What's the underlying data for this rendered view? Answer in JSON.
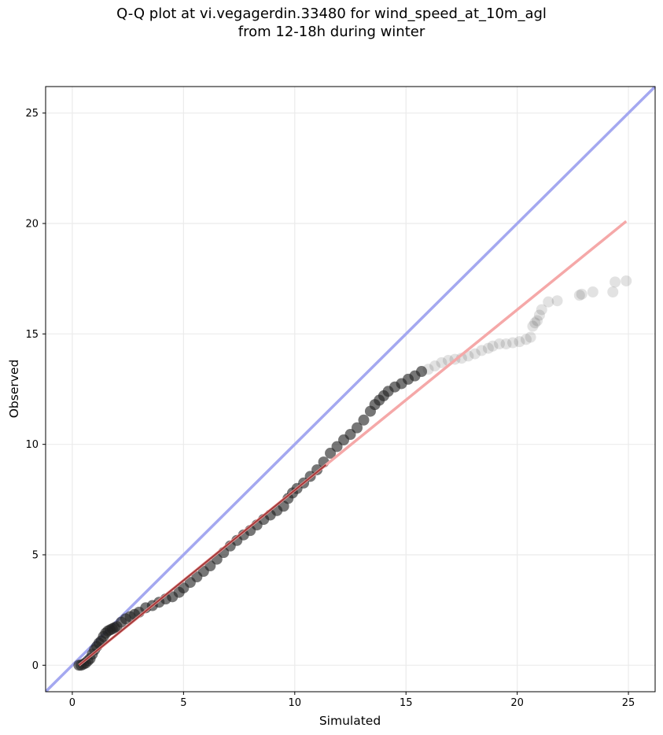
{
  "chart_data": {
    "type": "scatter",
    "title_lines": [
      "Q-Q plot at vi.vegagerdin.33480 for wind_speed_at_10m_agl",
      "from 12-18h during winter"
    ],
    "xlabel": "Simulated",
    "ylabel": "Observed",
    "xlim": [
      -1.2,
      26.2
    ],
    "ylim": [
      -1.2,
      26.2
    ],
    "xticks": [
      0,
      5,
      10,
      15,
      20,
      25
    ],
    "yticks": [
      0,
      5,
      10,
      15,
      20,
      25
    ],
    "grid": true,
    "colors": {
      "points": "#222222",
      "identity_line": "#a4a8f0",
      "fit_line": "#f5a8a8",
      "fit_line_dense": "#8b1a1a",
      "grid": "#ebebeb"
    },
    "identity_line": {
      "x": [
        -1.2,
        26.2
      ],
      "y": [
        -1.2,
        26.2
      ]
    },
    "fit_line": {
      "x": [
        0.3,
        24.9
      ],
      "y": [
        0.0,
        20.1
      ]
    },
    "points": {
      "x": [
        0.3,
        0.4,
        0.5,
        0.6,
        0.7,
        0.8,
        0.9,
        1.0,
        1.1,
        1.2,
        1.3,
        1.4,
        1.5,
        1.6,
        1.7,
        1.8,
        1.9,
        2.0,
        2.2,
        2.4,
        2.6,
        2.8,
        3.0,
        3.3,
        3.6,
        3.9,
        4.2,
        4.5,
        4.8,
        5.0,
        5.3,
        5.6,
        5.9,
        6.2,
        6.5,
        6.8,
        7.1,
        7.4,
        7.7,
        8.0,
        8.3,
        8.6,
        8.9,
        9.2,
        9.5,
        9.7,
        9.9,
        10.1,
        10.4,
        10.7,
        11.0,
        11.3,
        11.6,
        11.9,
        12.2,
        12.5,
        12.8,
        13.1,
        13.4,
        13.6,
        13.8,
        14.0,
        14.2,
        14.5,
        14.8,
        15.1,
        15.4,
        15.7,
        16.0,
        16.3,
        16.6,
        16.9,
        17.2,
        17.5,
        17.8,
        18.1,
        18.4,
        18.7,
        18.9,
        19.2,
        19.5,
        19.8,
        20.1,
        20.4,
        20.6,
        20.7,
        20.8,
        20.9,
        21.0,
        21.1,
        21.4,
        21.8,
        22.8,
        22.9,
        23.4,
        24.3,
        24.4,
        24.9
      ],
      "y": [
        0.0,
        0.0,
        0.05,
        0.1,
        0.2,
        0.3,
        0.5,
        0.7,
        0.85,
        1.0,
        1.1,
        1.3,
        1.45,
        1.55,
        1.6,
        1.65,
        1.7,
        1.75,
        1.95,
        2.1,
        2.2,
        2.3,
        2.4,
        2.6,
        2.7,
        2.85,
        3.0,
        3.1,
        3.3,
        3.5,
        3.75,
        4.0,
        4.25,
        4.5,
        4.8,
        5.1,
        5.4,
        5.65,
        5.9,
        6.1,
        6.35,
        6.6,
        6.8,
        7.0,
        7.2,
        7.55,
        7.8,
        8.0,
        8.25,
        8.55,
        8.85,
        9.2,
        9.6,
        9.9,
        10.2,
        10.45,
        10.75,
        11.1,
        11.5,
        11.8,
        12.0,
        12.2,
        12.4,
        12.6,
        12.75,
        12.95,
        13.1,
        13.3,
        13.4,
        13.55,
        13.7,
        13.8,
        13.85,
        13.9,
        14.0,
        14.1,
        14.25,
        14.35,
        14.45,
        14.55,
        14.55,
        14.6,
        14.65,
        14.75,
        14.85,
        15.35,
        15.5,
        15.6,
        15.85,
        16.1,
        16.45,
        16.5,
        16.75,
        16.8,
        16.9,
        16.9,
        17.35,
        17.4
      ]
    }
  }
}
